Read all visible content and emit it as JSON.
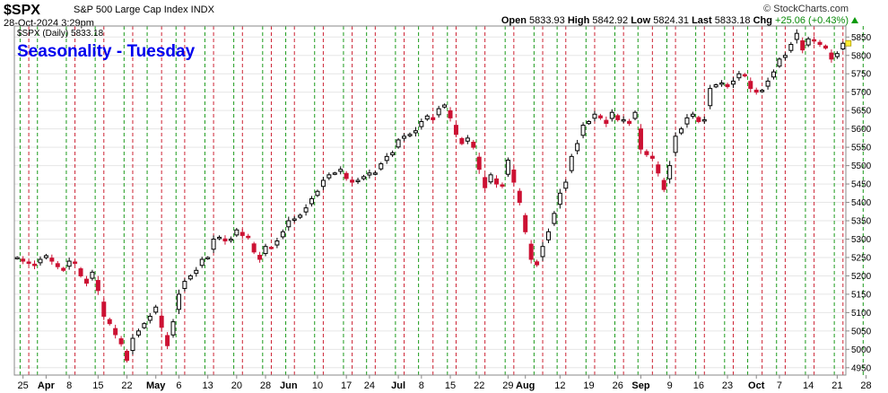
{
  "header": {
    "symbol": "$SPX",
    "name": "S&P 500 Large Cap Index INDX",
    "datetime": "28-Oct-2024 3:29pm",
    "brand": "© StockCharts.com",
    "quote": {
      "open_label": "Open",
      "open": "5833.93",
      "high_label": "High",
      "high": "5842.92",
      "low_label": "Low",
      "low": "5824.31",
      "last_label": "Last",
      "last": "5833.18",
      "chg_label": "Chg",
      "chg": "+25.06 (+0.43%)"
    },
    "up_color": "#0a9a0a"
  },
  "chart_data": {
    "type": "candlestick",
    "title": "Seasonality - Tuesday",
    "legend": "$SPX (Daily) 5833.18",
    "ylim": [
      4930,
      5880
    ],
    "yticks": [
      4950,
      5000,
      5050,
      5100,
      5150,
      5200,
      5250,
      5300,
      5350,
      5400,
      5450,
      5500,
      5550,
      5600,
      5650,
      5700,
      5750,
      5800,
      5850
    ],
    "x_labels": [
      {
        "label": "25",
        "bar": 1,
        "month": false
      },
      {
        "label": "Apr",
        "bar": 5,
        "month": true
      },
      {
        "label": "8",
        "bar": 9,
        "month": false
      },
      {
        "label": "15",
        "bar": 14,
        "month": false
      },
      {
        "label": "22",
        "bar": 19,
        "month": false
      },
      {
        "label": "May",
        "bar": 24,
        "month": true
      },
      {
        "label": "6",
        "bar": 28,
        "month": false
      },
      {
        "label": "13",
        "bar": 33,
        "month": false
      },
      {
        "label": "20",
        "bar": 38,
        "month": false
      },
      {
        "label": "28",
        "bar": 43,
        "month": false
      },
      {
        "label": "Jun",
        "bar": 47,
        "month": true
      },
      {
        "label": "10",
        "bar": 52,
        "month": false
      },
      {
        "label": "17",
        "bar": 57,
        "month": false
      },
      {
        "label": "24",
        "bar": 61,
        "month": false
      },
      {
        "label": "Jul",
        "bar": 66,
        "month": true
      },
      {
        "label": "8",
        "bar": 70,
        "month": false
      },
      {
        "label": "15",
        "bar": 75,
        "month": false
      },
      {
        "label": "22",
        "bar": 80,
        "month": false
      },
      {
        "label": "29",
        "bar": 85,
        "month": false
      },
      {
        "label": "Aug",
        "bar": 88,
        "month": true
      },
      {
        "label": "12",
        "bar": 94,
        "month": false
      },
      {
        "label": "19",
        "bar": 99,
        "month": false
      },
      {
        "label": "26",
        "bar": 104,
        "month": false
      },
      {
        "label": "Sep",
        "bar": 108,
        "month": true
      },
      {
        "label": "9",
        "bar": 113,
        "month": false
      },
      {
        "label": "16",
        "bar": 118,
        "month": false
      },
      {
        "label": "23",
        "bar": 123,
        "month": false
      },
      {
        "label": "Oct",
        "bar": 128,
        "month": true
      },
      {
        "label": "7",
        "bar": 132,
        "month": false
      },
      {
        "label": "14",
        "bar": 137,
        "month": false
      },
      {
        "label": "21",
        "bar": 142,
        "month": false
      },
      {
        "label": "28",
        "bar": 147,
        "month": false
      }
    ],
    "tuesday_bars": [
      2,
      10,
      15,
      20,
      25,
      29,
      34,
      39,
      44,
      48,
      53,
      58,
      62,
      67,
      72,
      76,
      81,
      86,
      91,
      95,
      100,
      105,
      110,
      114,
      119,
      124,
      129,
      133,
      138,
      143
    ],
    "monday_bars": [
      1,
      4,
      9,
      14,
      19,
      23,
      28,
      33,
      38,
      43,
      47,
      52,
      57,
      61,
      66,
      70,
      75,
      80,
      85,
      90,
      94,
      99,
      104,
      108,
      113,
      118,
      123,
      127,
      132,
      137,
      142,
      147
    ],
    "colors": {
      "down": "#cc1133",
      "up_fill": "#ffffff",
      "up_stroke": "#000000",
      "tuesday_line": "#cc2233",
      "monday_line": "#1a9a1a",
      "grid": "#e6e6e6"
    },
    "close": [
      5250,
      5240,
      5235,
      5228,
      5245,
      5255,
      5240,
      5225,
      5215,
      5240,
      5235,
      5200,
      5180,
      5210,
      5160,
      5090,
      5070,
      5040,
      5015,
      4970,
      5030,
      5050,
      5070,
      5090,
      5115,
      5060,
      5010,
      5075,
      5150,
      5185,
      5200,
      5215,
      5245,
      5250,
      5300,
      5305,
      5295,
      5300,
      5325,
      5310,
      5305,
      5265,
      5245,
      5280,
      5275,
      5295,
      5320,
      5350,
      5355,
      5365,
      5385,
      5410,
      5430,
      5460,
      5475,
      5480,
      5490,
      5465,
      5455,
      5460,
      5470,
      5480,
      5480,
      5505,
      5525,
      5535,
      5570,
      5580,
      5585,
      5595,
      5620,
      5635,
      5625,
      5655,
      5665,
      5630,
      5585,
      5560,
      5575,
      5550,
      5490,
      5440,
      5475,
      5450,
      5445,
      5515,
      5455,
      5400,
      5320,
      5245,
      5230,
      5280,
      5320,
      5370,
      5425,
      5455,
      5525,
      5560,
      5610,
      5620,
      5640,
      5630,
      5615,
      5645,
      5625,
      5625,
      5615,
      5645,
      5545,
      5530,
      5520,
      5480,
      5435,
      5500,
      5580,
      5600,
      5630,
      5640,
      5620,
      5625,
      5710,
      5720,
      5725,
      5715,
      5730,
      5750,
      5745,
      5710,
      5700,
      5705,
      5730,
      5755,
      5790,
      5800,
      5830,
      5860,
      5815,
      5845,
      5840,
      5830,
      5820,
      5790,
      5805,
      5833
    ]
  }
}
